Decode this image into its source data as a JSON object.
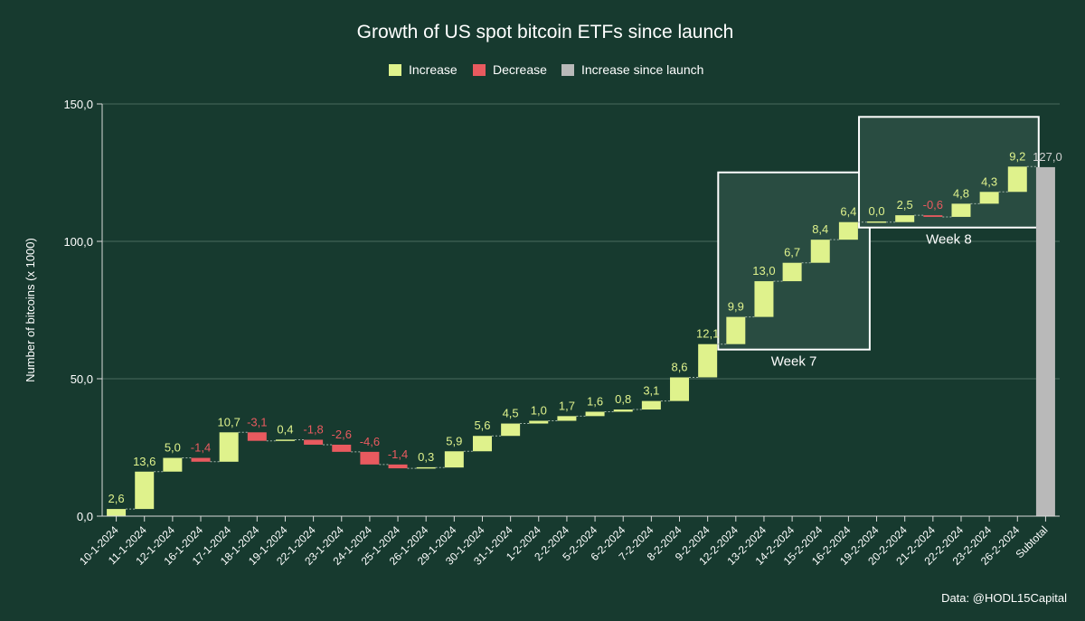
{
  "colors": {
    "background": "#173a2f",
    "increase": "#dff28c",
    "decrease": "#e95a5f",
    "subtotal": "#b9b9b9",
    "text": "#ffffff",
    "grid": "#4a6a5e",
    "axis": "#d9d9d9",
    "connector": "#9fb2a8",
    "week_box_fill": "#294c41",
    "week_box_stroke": "#ffffff",
    "subtotal_label": "#d0d0d0"
  },
  "chart_data": {
    "type": "waterfall",
    "title": "Growth of US spot bitcoin ETFs since launch",
    "ylabel": "Number of bitcoins (x 1000)",
    "xlabel": "",
    "ylim": [
      0,
      150
    ],
    "yticks": [
      {
        "value": 0,
        "label": "0,0"
      },
      {
        "value": 50,
        "label": "50,0"
      },
      {
        "value": 100,
        "label": "100,0"
      },
      {
        "value": 150,
        "label": "150,0"
      }
    ],
    "legend": [
      {
        "label": "Increase",
        "kind": "increase"
      },
      {
        "label": "Decrease",
        "kind": "decrease"
      },
      {
        "label": "Increase since launch",
        "kind": "subtotal"
      }
    ],
    "categories": [
      "10-1-2024",
      "11-1-2024",
      "12-1-2024",
      "16-1-2024",
      "17-1-2024",
      "18-1-2024",
      "19-1-2024",
      "22-1-2024",
      "23-1-2024",
      "24-1-2024",
      "25-1-2024",
      "26-1-2024",
      "29-1-2024",
      "30-1-2024",
      "31-1-2024",
      "1-2-2024",
      "2-2-2024",
      "5-2-2024",
      "6-2-2024",
      "7-2-2024",
      "8-2-2024",
      "9-2-2024",
      "12-2-2024",
      "13-2-2024",
      "14-2-2024",
      "15-2-2024",
      "16-2-2024",
      "19-2-2024",
      "20-2-2024",
      "21-2-2024",
      "22-2-2024",
      "23-2-2024",
      "26-2-2024",
      "Subtotal"
    ],
    "values": [
      2.6,
      13.6,
      5.0,
      -1.4,
      10.7,
      -3.1,
      0.4,
      -1.8,
      -2.6,
      -4.6,
      -1.4,
      0.3,
      5.9,
      5.6,
      4.5,
      1.0,
      1.7,
      1.6,
      0.8,
      3.1,
      8.6,
      12.1,
      9.9,
      13.0,
      6.7,
      8.4,
      6.4,
      0.0,
      2.5,
      -0.6,
      4.8,
      4.3,
      9.2,
      null
    ],
    "value_labels": [
      "2,6",
      "13,6",
      "5,0",
      "-1,4",
      "10,7",
      "-3,1",
      "0,4",
      "-1,8",
      "-2,6",
      "-4,6",
      "-1,4",
      "0,3",
      "5,9",
      "5,6",
      "4,5",
      "1,0",
      "1,7",
      "1,6",
      "0,8",
      "3,1",
      "8,6",
      "12,1",
      "9,9",
      "13,0",
      "6,7",
      "8,4",
      "6,4",
      "0,0",
      "2,5",
      "-0,6",
      "4,8",
      "4,3",
      "9,2",
      "127,0"
    ],
    "subtotal": {
      "label": "Subtotal",
      "value": 127.0,
      "value_label": "127,0"
    },
    "annotations": [
      {
        "label": "Week 7",
        "from": "12-2-2024",
        "to": "16-2-2024"
      },
      {
        "label": "Week 8",
        "from": "19-2-2024",
        "to": "26-2-2024"
      }
    ],
    "source": "Data: @HODL15Capital"
  }
}
